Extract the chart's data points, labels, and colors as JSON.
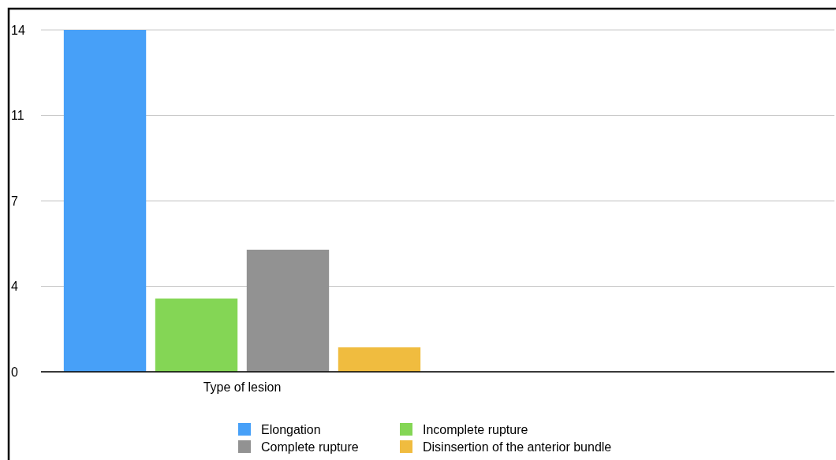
{
  "chart_data": {
    "type": "bar",
    "categories": [
      "Type of lesion"
    ],
    "series": [
      {
        "name": "Elongation",
        "color": "#47a0f8",
        "values": [
          14
        ]
      },
      {
        "name": "Incomplete rupture",
        "color": "#84d655",
        "values": [
          3
        ]
      },
      {
        "name": "Complete rupture",
        "color": "#929292",
        "values": [
          5
        ]
      },
      {
        "name": "Disinsertion of the anterior bundle",
        "color": "#f0bc3f",
        "values": [
          1
        ]
      }
    ],
    "ylim": [
      0,
      14
    ],
    "yticks": [
      0,
      {
        "value": 3.5,
        "label": "4"
      },
      7,
      {
        "value": 10.5,
        "label": "11"
      },
      14
    ],
    "grid": "y",
    "legend": "bottom"
  }
}
